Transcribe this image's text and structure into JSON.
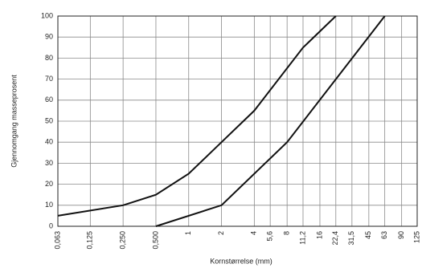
{
  "chart_data": {
    "type": "line",
    "xlabel": "Kornstørrelse (mm)",
    "ylabel": "Gjennomgang masseprosent",
    "xscale": "log",
    "xlim": [
      0.063,
      125
    ],
    "xticks": [
      {
        "value": 0.063,
        "label": "0,063"
      },
      {
        "value": 0.125,
        "label": "0,125"
      },
      {
        "value": 0.25,
        "label": "0,250"
      },
      {
        "value": 0.5,
        "label": "0,500"
      },
      1,
      2,
      4,
      {
        "value": 5.6,
        "label": "5,6"
      },
      8,
      {
        "value": 11.2,
        "label": "11,2"
      },
      16,
      {
        "value": 22.4,
        "label": "22,4"
      },
      {
        "value": 31.5,
        "label": "31,5"
      },
      45,
      63,
      90,
      125
    ],
    "ylim": [
      0,
      100
    ],
    "yticks": [
      0,
      10,
      20,
      30,
      40,
      50,
      60,
      70,
      80,
      90,
      100
    ],
    "grid": true,
    "series": [
      {
        "color": "#111111",
        "x": [
          0.063,
          0.25,
          0.5,
          1,
          2,
          4,
          11.2,
          22.4
        ],
        "values": [
          5,
          10,
          15,
          25,
          40,
          55,
          85,
          100
        ]
      },
      {
        "color": "#111111",
        "x": [
          0.5,
          2,
          8,
          63
        ],
        "values": [
          0,
          10,
          40,
          100
        ]
      }
    ]
  }
}
